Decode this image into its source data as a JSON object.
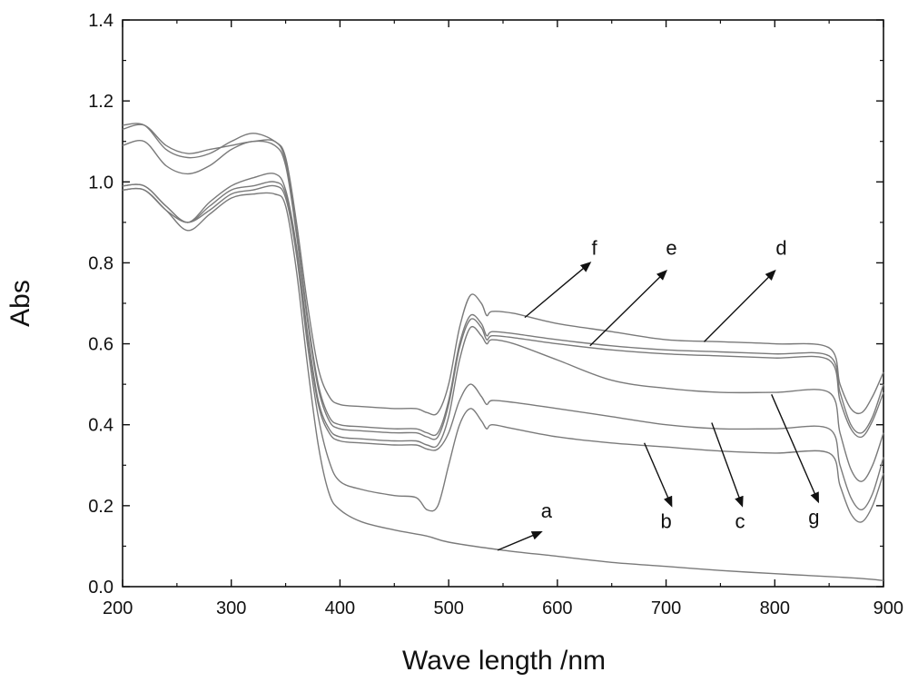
{
  "chart_data": {
    "type": "line",
    "title": "",
    "xlabel": "Wave length /nm",
    "ylabel": "Abs",
    "xlim": [
      200,
      900
    ],
    "ylim": [
      0.0,
      1.4
    ],
    "x_ticks": [
      "200",
      "300",
      "400",
      "500",
      "600",
      "700",
      "800",
      "900"
    ],
    "y_ticks": [
      "0.0",
      "0.2",
      "0.4",
      "0.6",
      "0.8",
      "1.0",
      "1.2",
      "1.4"
    ],
    "grid": false,
    "legend": "none",
    "line_color": "#7a7a7a",
    "arrow_color": "#111111",
    "series": [
      {
        "name": "a",
        "x": [
          200,
          220,
          240,
          260,
          280,
          300,
          320,
          340,
          350,
          360,
          370,
          380,
          390,
          400,
          420,
          450,
          480,
          500,
          550,
          600,
          650,
          700,
          750,
          800,
          850,
          880,
          900
        ],
        "y": [
          0.98,
          0.98,
          0.93,
          0.88,
          0.92,
          0.96,
          0.97,
          0.97,
          0.94,
          0.78,
          0.55,
          0.35,
          0.23,
          0.19,
          0.16,
          0.14,
          0.125,
          0.11,
          0.09,
          0.075,
          0.06,
          0.05,
          0.04,
          0.032,
          0.025,
          0.02,
          0.015
        ]
      },
      {
        "name": "b",
        "x": [
          200,
          220,
          240,
          260,
          280,
          300,
          320,
          340,
          350,
          360,
          370,
          380,
          390,
          400,
          420,
          450,
          470,
          480,
          490,
          500,
          510,
          520,
          530,
          535,
          540,
          560,
          600,
          650,
          700,
          750,
          800,
          850,
          860,
          870,
          880,
          890,
          900
        ],
        "y": [
          0.98,
          0.98,
          0.93,
          0.9,
          0.93,
          0.97,
          0.98,
          0.99,
          0.96,
          0.82,
          0.6,
          0.42,
          0.31,
          0.26,
          0.24,
          0.225,
          0.22,
          0.19,
          0.2,
          0.3,
          0.4,
          0.44,
          0.41,
          0.39,
          0.4,
          0.39,
          0.37,
          0.355,
          0.345,
          0.335,
          0.33,
          0.33,
          0.25,
          0.18,
          0.16,
          0.2,
          0.28
        ]
      },
      {
        "name": "c",
        "x": [
          200,
          220,
          240,
          260,
          280,
          300,
          320,
          340,
          350,
          360,
          370,
          380,
          390,
          400,
          420,
          450,
          470,
          480,
          490,
          500,
          510,
          520,
          530,
          535,
          540,
          560,
          600,
          650,
          700,
          750,
          800,
          850,
          860,
          870,
          880,
          890,
          900
        ],
        "y": [
          0.99,
          0.99,
          0.94,
          0.9,
          0.94,
          0.98,
          0.99,
          1.0,
          0.97,
          0.83,
          0.62,
          0.45,
          0.38,
          0.36,
          0.355,
          0.35,
          0.35,
          0.34,
          0.34,
          0.38,
          0.46,
          0.5,
          0.47,
          0.45,
          0.46,
          0.455,
          0.44,
          0.42,
          0.4,
          0.39,
          0.39,
          0.39,
          0.3,
          0.22,
          0.19,
          0.23,
          0.32
        ]
      },
      {
        "name": "d",
        "x": [
          200,
          220,
          240,
          260,
          280,
          300,
          320,
          340,
          350,
          360,
          370,
          380,
          390,
          400,
          420,
          450,
          470,
          480,
          490,
          500,
          510,
          520,
          530,
          535,
          540,
          560,
          600,
          650,
          700,
          750,
          800,
          850,
          860,
          870,
          880,
          890,
          900
        ],
        "y": [
          1.14,
          1.14,
          1.08,
          1.06,
          1.07,
          1.1,
          1.12,
          1.1,
          1.06,
          0.9,
          0.7,
          0.54,
          0.47,
          0.45,
          0.445,
          0.44,
          0.44,
          0.43,
          0.43,
          0.5,
          0.64,
          0.72,
          0.7,
          0.67,
          0.68,
          0.675,
          0.65,
          0.63,
          0.61,
          0.605,
          0.6,
          0.59,
          0.5,
          0.44,
          0.43,
          0.47,
          0.53
        ]
      },
      {
        "name": "e",
        "x": [
          200,
          220,
          240,
          260,
          280,
          300,
          320,
          340,
          350,
          360,
          370,
          380,
          390,
          400,
          420,
          450,
          470,
          480,
          490,
          500,
          510,
          520,
          530,
          535,
          540,
          560,
          600,
          650,
          700,
          750,
          800,
          850,
          860,
          870,
          880,
          890,
          900
        ],
        "y": [
          1.13,
          1.14,
          1.09,
          1.07,
          1.08,
          1.09,
          1.1,
          1.1,
          1.05,
          0.88,
          0.67,
          0.5,
          0.42,
          0.4,
          0.395,
          0.39,
          0.39,
          0.38,
          0.38,
          0.46,
          0.6,
          0.67,
          0.65,
          0.62,
          0.63,
          0.625,
          0.61,
          0.595,
          0.585,
          0.58,
          0.575,
          0.57,
          0.48,
          0.4,
          0.38,
          0.42,
          0.5
        ]
      },
      {
        "name": "f",
        "x": [
          200,
          220,
          240,
          260,
          280,
          300,
          320,
          340,
          350,
          360,
          370,
          380,
          390,
          400,
          420,
          450,
          470,
          480,
          490,
          500,
          510,
          520,
          530,
          535,
          540,
          560,
          600,
          650,
          700,
          750,
          800,
          850,
          860,
          870,
          880,
          890,
          900
        ],
        "y": [
          1.09,
          1.1,
          1.04,
          1.02,
          1.04,
          1.08,
          1.1,
          1.09,
          1.04,
          0.87,
          0.66,
          0.49,
          0.41,
          0.39,
          0.385,
          0.38,
          0.38,
          0.37,
          0.37,
          0.45,
          0.59,
          0.66,
          0.64,
          0.61,
          0.62,
          0.615,
          0.6,
          0.585,
          0.575,
          0.57,
          0.565,
          0.56,
          0.46,
          0.39,
          0.37,
          0.41,
          0.48
        ]
      },
      {
        "name": "g",
        "x": [
          200,
          220,
          240,
          260,
          280,
          300,
          320,
          340,
          350,
          360,
          370,
          380,
          390,
          400,
          420,
          450,
          470,
          480,
          490,
          500,
          510,
          520,
          530,
          535,
          540,
          560,
          600,
          650,
          700,
          750,
          800,
          850,
          860,
          870,
          880,
          890,
          900
        ],
        "y": [
          0.99,
          0.99,
          0.94,
          0.9,
          0.95,
          0.99,
          1.01,
          1.02,
          0.98,
          0.84,
          0.63,
          0.46,
          0.39,
          0.37,
          0.365,
          0.36,
          0.36,
          0.35,
          0.35,
          0.42,
          0.56,
          0.64,
          0.62,
          0.6,
          0.61,
          0.6,
          0.56,
          0.51,
          0.49,
          0.48,
          0.48,
          0.48,
          0.38,
          0.29,
          0.26,
          0.3,
          0.38
        ]
      }
    ],
    "annotations": [
      {
        "label": "a",
        "from": [
          545,
          0.09
        ],
        "to": [
          585,
          0.135
        ],
        "text_at": [
          590,
          0.17
        ]
      },
      {
        "label": "b",
        "from": [
          680,
          0.355
        ],
        "to": [
          705,
          0.2
        ],
        "text_at": [
          700,
          0.145
        ]
      },
      {
        "label": "c",
        "from": [
          742,
          0.405
        ],
        "to": [
          770,
          0.2
        ],
        "text_at": [
          768,
          0.145
        ]
      },
      {
        "label": "d",
        "from": [
          735,
          0.605
        ],
        "to": [
          800,
          0.78
        ],
        "text_at": [
          806,
          0.82
        ]
      },
      {
        "label": "e",
        "from": [
          630,
          0.595
        ],
        "to": [
          700,
          0.78
        ],
        "text_at": [
          705,
          0.82
        ]
      },
      {
        "label": "f",
        "from": [
          570,
          0.665
        ],
        "to": [
          630,
          0.8
        ],
        "text_at": [
          634,
          0.82
        ]
      },
      {
        "label": "g",
        "from": [
          797,
          0.475
        ],
        "to": [
          840,
          0.21
        ],
        "text_at": [
          836,
          0.155
        ]
      }
    ]
  }
}
